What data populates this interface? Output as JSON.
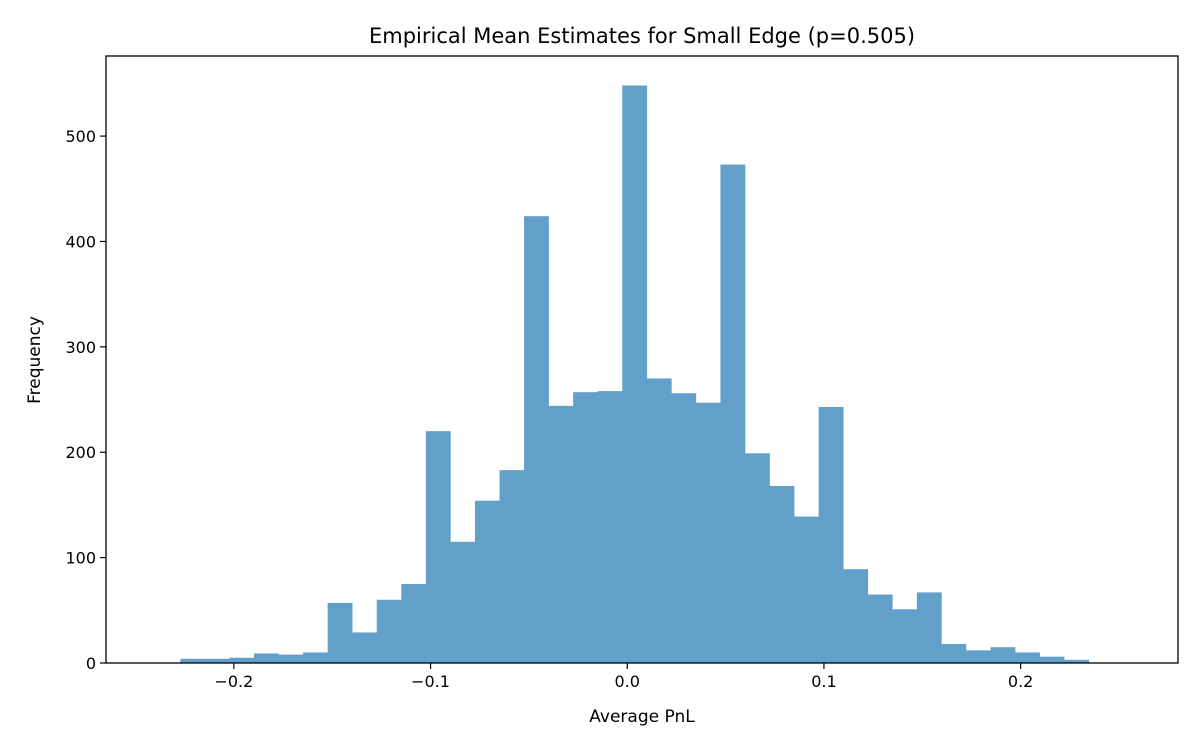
{
  "chart_data": {
    "type": "bar",
    "subtype": "histogram",
    "title": "Empirical Mean Estimates for Small Edge (p=0.505)",
    "xlabel": "Average PnL",
    "ylabel": "Frequency",
    "xlim": [
      -0.265,
      0.28
    ],
    "ylim": [
      0,
      576
    ],
    "xticks": [
      -0.2,
      -0.1,
      0.0,
      0.1,
      0.2
    ],
    "xtick_labels": [
      "−0.2",
      "−0.1",
      "0.0",
      "0.1",
      "0.2"
    ],
    "yticks": [
      0,
      100,
      200,
      300,
      400,
      500
    ],
    "ytick_labels": [
      "0",
      "100",
      "200",
      "300",
      "400",
      "500"
    ],
    "grid": false,
    "bar_color": "#62a0ca",
    "bin_start": -0.2272,
    "bin_end": 0.2346,
    "values": [
      4,
      4,
      5,
      9,
      8,
      10,
      57,
      29,
      60,
      75,
      220,
      115,
      154,
      183,
      424,
      244,
      257,
      258,
      548,
      270,
      256,
      247,
      473,
      199,
      168,
      139,
      243,
      89,
      65,
      51,
      67,
      18,
      12,
      15,
      10,
      6,
      3
    ]
  }
}
